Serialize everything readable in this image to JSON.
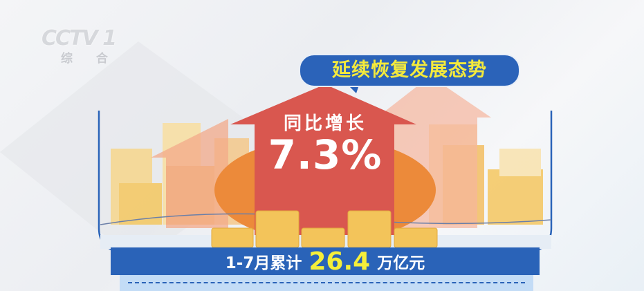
{
  "logo": {
    "channel": "CCTV 1",
    "sub": "综 合"
  },
  "bubble": {
    "text": "延续恢复发展态势"
  },
  "arrow": {
    "label": "同比增长",
    "value": "7.3%"
  },
  "summary": {
    "prefix": "1-7月累计",
    "value": "26.4",
    "unit": "万亿元"
  },
  "colors": {
    "blue": "#2a63b8",
    "yellow": "#f5ef3a",
    "red_arrow": "#d9574f",
    "coin": "#f3c45a"
  }
}
